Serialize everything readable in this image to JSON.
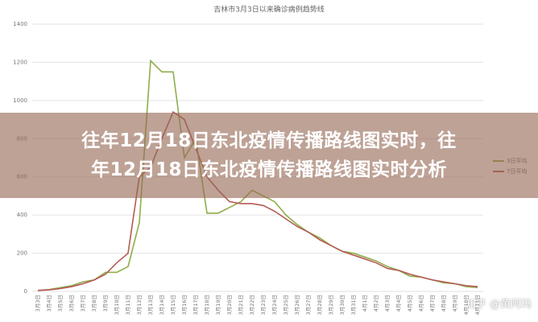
{
  "chart_data": {
    "type": "line",
    "title": "吉林市3月3日以来确诊病例趋势线",
    "categories": [
      "3月3日",
      "3月4日",
      "3月5日",
      "3月6日",
      "3月7日",
      "3月8日",
      "3月9日",
      "3月10日",
      "3月11日",
      "3月12日",
      "3月13日",
      "3月14日",
      "3月15日",
      "3月16日",
      "3月17日",
      "3月18日",
      "3月19日",
      "3月20日",
      "3月21日",
      "3月22日",
      "3月23日",
      "3月24日",
      "3月25日",
      "3月26日",
      "3月27日",
      "3月28日",
      "3月29日",
      "3月30日",
      "3月31日",
      "4月1日",
      "4月2日",
      "4月3日",
      "4月4日",
      "4月5日",
      "4月6日",
      "4月7日",
      "4月8日",
      "4月9日",
      "4月10日",
      "4月11日"
    ],
    "series": [
      {
        "name": "3日平均",
        "color": "#8fae4a",
        "values": [
          5,
          10,
          20,
          30,
          50,
          60,
          100,
          100,
          130,
          360,
          1208.33,
          1150,
          1150,
          700,
          800,
          410,
          410,
          440,
          470,
          530,
          500,
          470,
          400,
          350,
          310,
          280,
          240,
          210,
          200,
          180,
          160,
          130,
          110,
          80,
          75,
          60,
          45,
          40,
          25,
          20
        ]
      },
      {
        "name": "7日平均",
        "color": "#b55a55",
        "values": [
          5,
          8,
          15,
          25,
          40,
          60,
          90,
          150,
          200,
          600,
          650,
          800,
          940,
          900,
          750,
          600,
          530,
          470,
          460,
          460,
          450,
          420,
          380,
          340,
          310,
          270,
          240,
          210,
          190,
          170,
          150,
          120,
          110,
          90,
          75,
          60,
          50,
          40,
          30,
          25
        ]
      }
    ],
    "ylim": [
      0,
      1400
    ],
    "yticks": [
      0,
      200,
      400,
      600,
      800,
      1000,
      1200,
      1400
    ],
    "grid": true
  },
  "banner": {
    "lines": [
      "往年12月18日东北疫情传播路线图实时，往",
      "年12月18日东北疫情传播路线图实时分析"
    ]
  },
  "watermark": "知乎 @黄阿玛"
}
